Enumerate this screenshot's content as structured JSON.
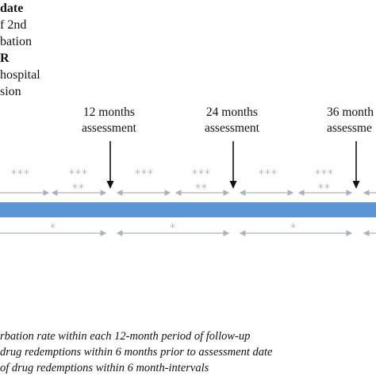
{
  "top_left": {
    "line1": "date",
    "line2": "f 2nd",
    "line3": "bation",
    "line4": "R",
    "line5": "hospital",
    "line6": "sion"
  },
  "assessments": [
    {
      "line1": "12 months",
      "line2": "assessment"
    },
    {
      "line1": "24 months",
      "line2": "assessment"
    },
    {
      "line1": "36 month",
      "line2": "assessme"
    }
  ],
  "markers": {
    "triple": "***",
    "double": "**",
    "single": "*"
  },
  "legend": {
    "single": "rbation rate within each 12-month period of follow-up",
    "double": "drug redemptions within 6 months prior to assessment date",
    "triple": "of drug redemptions within 6 month-intervals"
  },
  "colors": {
    "timeline_bar": "#5b95d5",
    "arrow_gray": "#aab3bd",
    "star_gray": "#b5b9bf",
    "black_arrow": "#111111"
  }
}
